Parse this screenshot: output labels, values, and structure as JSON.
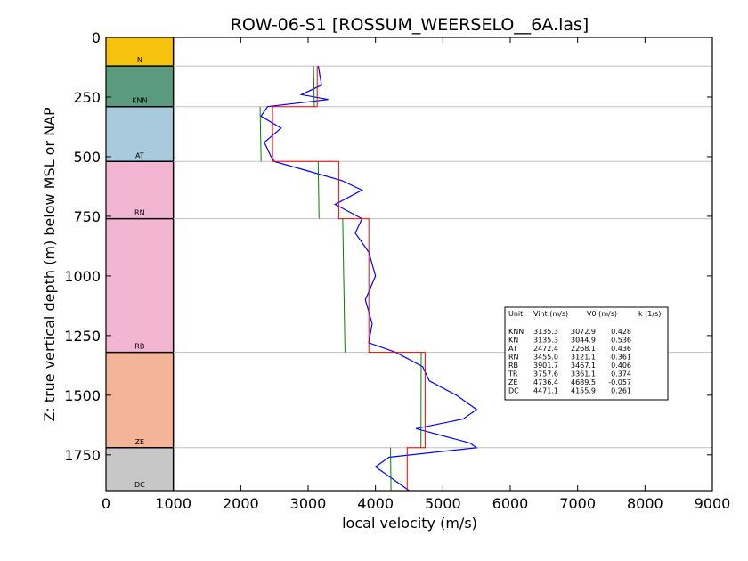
{
  "chart_data": {
    "type": "line",
    "title": "ROW-06-S1 [ROSSUM_WEERSELO__6A.las]",
    "xlabel": "local velocity (m/s)",
    "ylabel": "Z: true vertical depth (m) below MSL or NAP",
    "xlim": [
      0,
      9000
    ],
    "ylim": [
      1900,
      0
    ],
    "x_ticks": [
      "0",
      "1000",
      "2000",
      "3000",
      "4000",
      "5000",
      "6000",
      "7000",
      "8000",
      "9000"
    ],
    "y_ticks": [
      "0",
      "250",
      "500",
      "750",
      "1000",
      "1250",
      "1500",
      "1750"
    ],
    "grid": "horizontal lines at unit boundaries",
    "colors": {
      "log": "#0000ff",
      "interval_velocity": "#ff0000",
      "v0_k_fit": "#008000",
      "boundary": "#bfbfbf"
    },
    "units": [
      {
        "name": "N",
        "top": 0,
        "base": 120,
        "color": "#f5c20e"
      },
      {
        "name": "KNN",
        "top": 120,
        "base": 290,
        "color": "#5a9a7f"
      },
      {
        "name": "AT",
        "top": 290,
        "base": 520,
        "color": "#a9c9dc"
      },
      {
        "name": "RN",
        "top": 520,
        "base": 760,
        "color": "#f2b6d3"
      },
      {
        "name": "RB",
        "top": 760,
        "base": 1320,
        "color": "#f2b6d3"
      },
      {
        "name": "ZE",
        "top": 1320,
        "base": 1720,
        "color": "#f4b497"
      },
      {
        "name": "DC",
        "top": 1720,
        "base": 1900,
        "color": "#c7c7c7"
      }
    ],
    "velocity_log": {
      "name": "local velocity",
      "depth": [
        120,
        200,
        240,
        260,
        290,
        330,
        380,
        440,
        500,
        520,
        560,
        600,
        640,
        700,
        760,
        820,
        900,
        1000,
        1100,
        1200,
        1280,
        1320,
        1380,
        1440,
        1500,
        1560,
        1600,
        1640,
        1700,
        1720,
        1760,
        1800,
        1860,
        1900
      ],
      "velocity": [
        3150,
        3200,
        2900,
        3300,
        2400,
        2300,
        2600,
        2350,
        2450,
        2500,
        3000,
        3500,
        3800,
        3400,
        3800,
        3700,
        3900,
        4000,
        3850,
        3950,
        3900,
        4300,
        4700,
        4800,
        5200,
        5500,
        5300,
        4600,
        5400,
        5500,
        4200,
        4000,
        4300,
        4500
      ]
    },
    "interval_velocity": [
      {
        "unit": "KNN",
        "top": 120,
        "base": 290,
        "vint": 3135.3
      },
      {
        "unit": "AT",
        "top": 290,
        "base": 520,
        "vint": 2472.4
      },
      {
        "unit": "RN",
        "top": 520,
        "base": 760,
        "vint": 3455.0
      },
      {
        "unit": "RB",
        "top": 760,
        "base": 1320,
        "vint": 3901.7
      },
      {
        "unit": "ZE",
        "top": 1320,
        "base": 1720,
        "vint": 4736.4
      },
      {
        "unit": "DC",
        "top": 1720,
        "base": 1900,
        "vint": 4471.1
      }
    ],
    "v0_k_fit": [
      {
        "unit": "KNN",
        "v0": 3072.9,
        "k": 0.428,
        "top": 120,
        "base": 290
      },
      {
        "unit": "AT",
        "v0": 2268.1,
        "k": 0.436,
        "top": 290,
        "base": 520
      },
      {
        "unit": "RN",
        "v0": 3121.1,
        "k": 0.361,
        "top": 520,
        "base": 760
      },
      {
        "unit": "RB",
        "v0": 3467.1,
        "k": 0.406,
        "top": 760,
        "base": 1320
      },
      {
        "unit": "ZE",
        "v0": 4689.5,
        "k": -0.057,
        "top": 1320,
        "base": 1720
      },
      {
        "unit": "DC",
        "v0": 4155.9,
        "k": 0.261,
        "top": 1720,
        "base": 1900
      }
    ],
    "table": {
      "headers": [
        "Unit",
        "Vint (m/s)",
        "V0 (m/s)",
        "k (1/s)"
      ],
      "rows": [
        [
          "KNN",
          "3135.3",
          "3072.9",
          "0.428"
        ],
        [
          "KN",
          "3135.3",
          "3044.9",
          "0.536"
        ],
        [
          "AT",
          "2472.4",
          "2268.1",
          "0.436"
        ],
        [
          "RN",
          "3455.0",
          "3121.1",
          "0.361"
        ],
        [
          "RB",
          "3901.7",
          "3467.1",
          "0.406"
        ],
        [
          "TR",
          "3757.6",
          "3361.1",
          "0.374"
        ],
        [
          "ZE",
          "4736.4",
          "4689.5",
          "-0.057"
        ],
        [
          "DC",
          "4471.1",
          "4155.9",
          "0.261"
        ]
      ]
    }
  }
}
